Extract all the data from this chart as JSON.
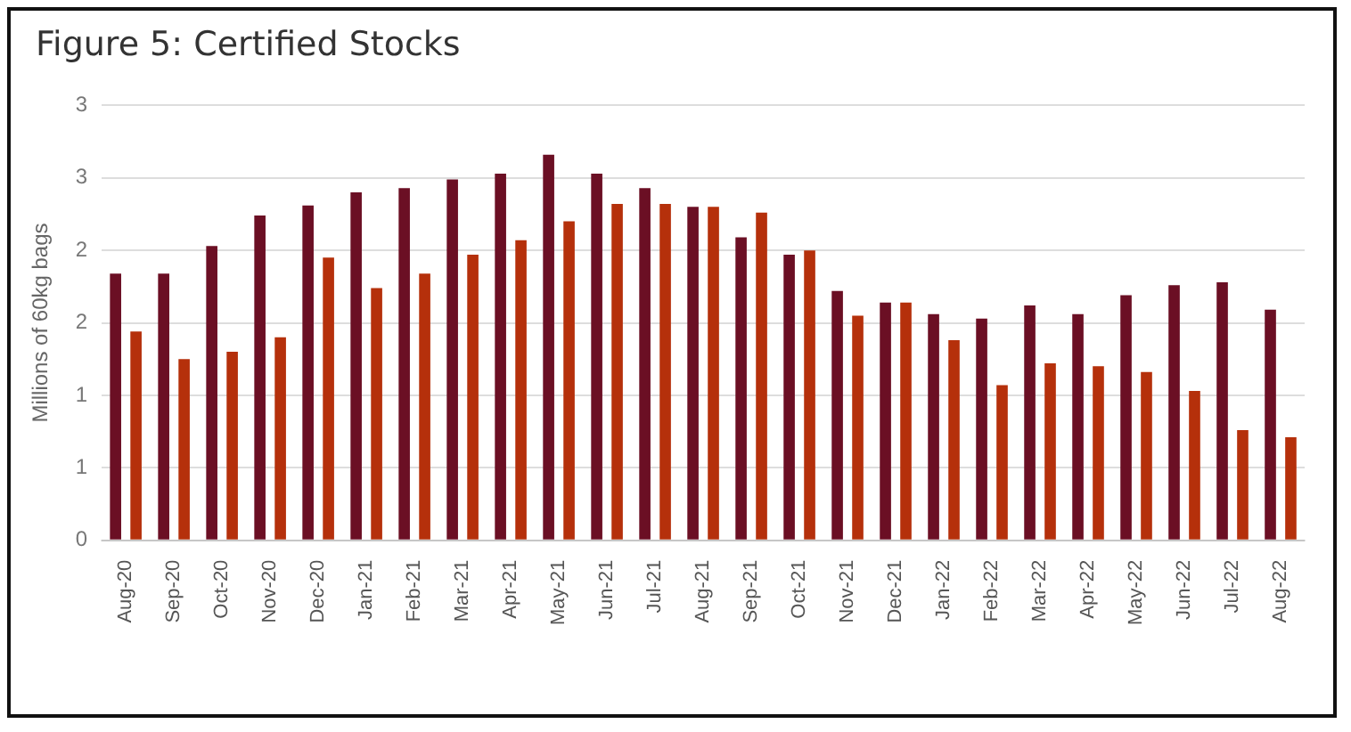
{
  "chart_data": {
    "type": "bar",
    "title": "Figure 5: Certified Stocks",
    "ylabel": "Millions of 60kg bags",
    "categories": [
      "Aug-20",
      "Sep-20",
      "Oct-20",
      "Nov-20",
      "Dec-20",
      "Jan-21",
      "Feb-21",
      "Mar-21",
      "Apr-21",
      "May-21",
      "Jun-21",
      "Jul-21",
      "Aug-21",
      "Sep-21",
      "Oct-21",
      "Nov-21",
      "Dec-21",
      "Jan-22",
      "Feb-22",
      "Mar-22",
      "Apr-22",
      "May-22",
      "Jun-22",
      "Jul-22",
      "Aug-22"
    ],
    "series": [
      {
        "color": "#6b0f24",
        "values": [
          1.84,
          1.84,
          2.03,
          2.24,
          2.31,
          2.4,
          2.43,
          2.49,
          2.53,
          2.66,
          2.53,
          2.43,
          2.3,
          2.09,
          1.97,
          1.72,
          1.64,
          1.56,
          1.53,
          1.62,
          1.56,
          1.69,
          1.76,
          1.78,
          1.59
        ]
      },
      {
        "color": "#b5300b",
        "values": [
          1.44,
          1.25,
          1.3,
          1.4,
          1.95,
          1.74,
          1.84,
          1.97,
          2.07,
          2.2,
          2.32,
          2.32,
          2.3,
          2.26,
          2.0,
          1.55,
          1.64,
          1.38,
          1.07,
          1.22,
          1.2,
          1.16,
          1.03,
          0.76,
          0.71
        ]
      }
    ],
    "ylim": [
      0,
      3
    ],
    "yticks": [
      0,
      {
        "value": 0.5,
        "label": "1"
      },
      1,
      {
        "value": 1.5,
        "label": "2"
      },
      2,
      {
        "value": 2.5,
        "label": "3"
      },
      3
    ],
    "grid": "y"
  }
}
